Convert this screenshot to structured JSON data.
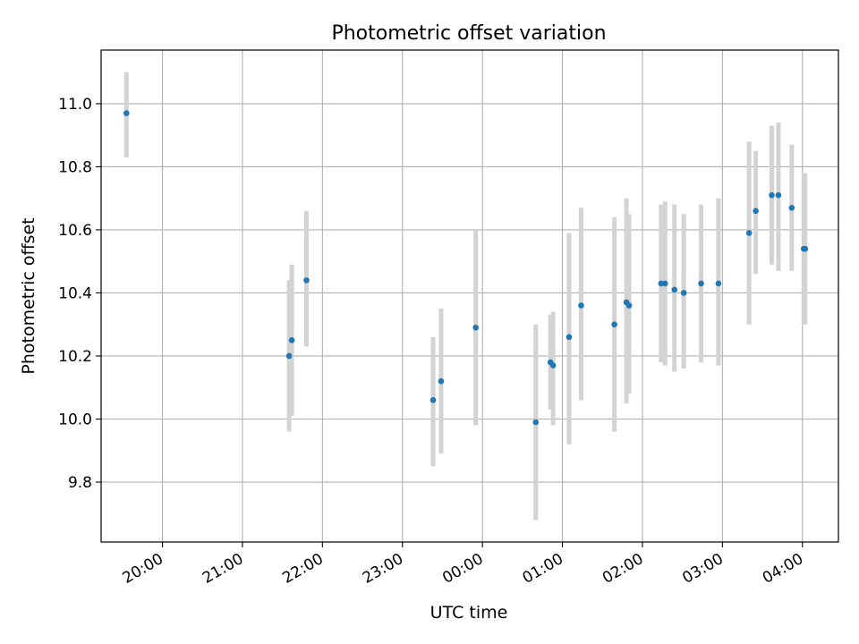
{
  "chart_data": {
    "type": "scatter",
    "title": "Photometric offset variation",
    "xlabel": "UTC time",
    "ylabel": "Photometric offset",
    "x_ticks": [
      "20:00",
      "21:00",
      "22:00",
      "23:00",
      "00:00",
      "01:00",
      "02:00",
      "03:00",
      "04:00"
    ],
    "y_ticks": [
      "9.8",
      "10.0",
      "10.2",
      "10.4",
      "10.6",
      "10.8",
      "11.0"
    ],
    "xlim": [
      "19:14",
      "04:27"
    ],
    "ylim": [
      9.61,
      11.17
    ],
    "grid": true,
    "colors": {
      "point": "#1f77b4",
      "errorbar": "#d3d3d3",
      "grid": "#b0b0b0"
    },
    "points": [
      {
        "t": "19:33",
        "y": 10.97,
        "lo": 10.83,
        "hi": 11.1
      },
      {
        "t": "21:35",
        "y": 10.2,
        "lo": 9.96,
        "hi": 10.44
      },
      {
        "t": "21:37",
        "y": 10.25,
        "lo": 10.01,
        "hi": 10.49
      },
      {
        "t": "21:48",
        "y": 10.44,
        "lo": 10.23,
        "hi": 10.66
      },
      {
        "t": "23:23",
        "y": 10.06,
        "lo": 9.85,
        "hi": 10.26
      },
      {
        "t": "23:29",
        "y": 10.12,
        "lo": 9.89,
        "hi": 10.35
      },
      {
        "t": "23:55",
        "y": 10.29,
        "lo": 9.98,
        "hi": 10.6
      },
      {
        "t": "00:40",
        "y": 9.99,
        "lo": 9.68,
        "hi": 10.3
      },
      {
        "t": "00:51",
        "y": 10.18,
        "lo": 10.03,
        "hi": 10.33
      },
      {
        "t": "00:53",
        "y": 10.17,
        "lo": 9.98,
        "hi": 10.34
      },
      {
        "t": "01:05",
        "y": 10.26,
        "lo": 9.92,
        "hi": 10.59
      },
      {
        "t": "01:14",
        "y": 10.36,
        "lo": 10.06,
        "hi": 10.67
      },
      {
        "t": "01:39",
        "y": 10.3,
        "lo": 9.96,
        "hi": 10.64
      },
      {
        "t": "01:48",
        "y": 10.37,
        "lo": 10.05,
        "hi": 10.7
      },
      {
        "t": "01:50",
        "y": 10.36,
        "lo": 10.08,
        "hi": 10.65
      },
      {
        "t": "02:14",
        "y": 10.43,
        "lo": 10.18,
        "hi": 10.68
      },
      {
        "t": "02:17",
        "y": 10.43,
        "lo": 10.17,
        "hi": 10.69
      },
      {
        "t": "02:24",
        "y": 10.41,
        "lo": 10.15,
        "hi": 10.68
      },
      {
        "t": "02:31",
        "y": 10.4,
        "lo": 10.16,
        "hi": 10.65
      },
      {
        "t": "02:44",
        "y": 10.43,
        "lo": 10.18,
        "hi": 10.68
      },
      {
        "t": "02:57",
        "y": 10.43,
        "lo": 10.17,
        "hi": 10.7
      },
      {
        "t": "03:20",
        "y": 10.59,
        "lo": 10.3,
        "hi": 10.88
      },
      {
        "t": "03:25",
        "y": 10.66,
        "lo": 10.46,
        "hi": 10.85
      },
      {
        "t": "03:37",
        "y": 10.71,
        "lo": 10.49,
        "hi": 10.93
      },
      {
        "t": "03:42",
        "y": 10.71,
        "lo": 10.47,
        "hi": 10.94
      },
      {
        "t": "03:52",
        "y": 10.67,
        "lo": 10.47,
        "hi": 10.87
      },
      {
        "t": "04:01",
        "y": 10.54,
        "lo": 10.3,
        "hi": 10.78
      },
      {
        "t": "04:02",
        "y": 10.54,
        "lo": 10.3,
        "hi": 10.78
      }
    ]
  }
}
